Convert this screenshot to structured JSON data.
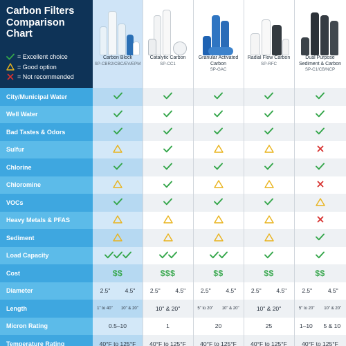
{
  "title": {
    "line1": "Carbon Filters",
    "line2": "Comparison",
    "line3": "Chart"
  },
  "legend": [
    {
      "icon": "check-icon",
      "text": "= Excellent choice"
    },
    {
      "icon": "triangle-icon",
      "text": "= Good option"
    },
    {
      "icon": "x-icon",
      "text": "= Not recommended"
    }
  ],
  "colors": {
    "header_navy": "#0e3357",
    "label_dark": "#3ea7e0",
    "label_light": "#5cbbe9",
    "check_green": "#34a64a",
    "triangle_yellow": "#e9b31c",
    "x_red": "#d7312f"
  },
  "products": [
    {
      "name": "Carbon Block",
      "sku": "SP-CBR2/CBC/EV/EPM"
    },
    {
      "name": "Catalytic Carbon",
      "sku": "SP-CC1"
    },
    {
      "name": "Granular Activated Carbon",
      "sku": "SP-GAC"
    },
    {
      "name": "Radial Flow Carbon",
      "sku": "SP-RFC"
    },
    {
      "name": "Dual Purpose Sediment & Carbon",
      "sku": "SP-C1/CB/NCP"
    }
  ],
  "rows": [
    {
      "label": "City/Municipal Water",
      "values": [
        "check",
        "check",
        "check",
        "check",
        "check"
      ]
    },
    {
      "label": "Well Water",
      "values": [
        "check",
        "check",
        "check",
        "check",
        "check"
      ]
    },
    {
      "label": "Bad Tastes & Odors",
      "values": [
        "check",
        "check",
        "check",
        "check",
        "check"
      ]
    },
    {
      "label": "Sulfur",
      "values": [
        "triangle",
        "check",
        "triangle",
        "triangle",
        "x"
      ]
    },
    {
      "label": "Chlorine",
      "values": [
        "check",
        "check",
        "check",
        "check",
        "check"
      ]
    },
    {
      "label": "Chloromine",
      "values": [
        "triangle",
        "check",
        "triangle",
        "triangle",
        "x"
      ]
    },
    {
      "label": "VOCs",
      "values": [
        "check",
        "check",
        "check",
        "check",
        "triangle"
      ]
    },
    {
      "label": "Heavy Metals & PFAS",
      "values": [
        "triangle",
        "triangle",
        "triangle",
        "triangle",
        "x"
      ]
    },
    {
      "label": "Sediment",
      "values": [
        "triangle",
        "triangle",
        "triangle",
        "triangle",
        "check"
      ]
    }
  ],
  "load_capacity": {
    "label": "Load Capacity",
    "checks": [
      3,
      2,
      2,
      1,
      1
    ]
  },
  "cost": {
    "label": "Cost",
    "values": [
      "$$",
      "$$$",
      "$$",
      "$$",
      "$$"
    ]
  },
  "diameter": {
    "label": "Diameter",
    "values": [
      [
        "2.5\"",
        "4.5\""
      ],
      [
        "2.5\"",
        "4.5\""
      ],
      [
        "2.5\"",
        "4.5\""
      ],
      [
        "2.5\"",
        "4.5\""
      ],
      [
        "2.5\"",
        "4.5\""
      ]
    ]
  },
  "length": {
    "label": "Length",
    "values": [
      [
        "1\" to 40\"",
        "10\" & 20\""
      ],
      [
        "10\" & 20\""
      ],
      [
        "5\" to 20\"",
        "10\" & 20\""
      ],
      [
        "10\" & 20\""
      ],
      [
        "5\" to 20\"",
        "10\" & 20\""
      ]
    ]
  },
  "micron": {
    "label": "Micron Rating",
    "values": [
      [
        "0.5–10"
      ],
      [
        "1"
      ],
      [
        "20"
      ],
      [
        "25"
      ],
      [
        "1–10",
        "5 & 10"
      ]
    ]
  },
  "temperature": {
    "label": "Temperature Rating",
    "values": [
      "40°F to 125°F",
      "40°F to 125°F",
      "40°F to 125°F",
      "40°F to 125°F",
      "40°F to 125°F"
    ]
  }
}
